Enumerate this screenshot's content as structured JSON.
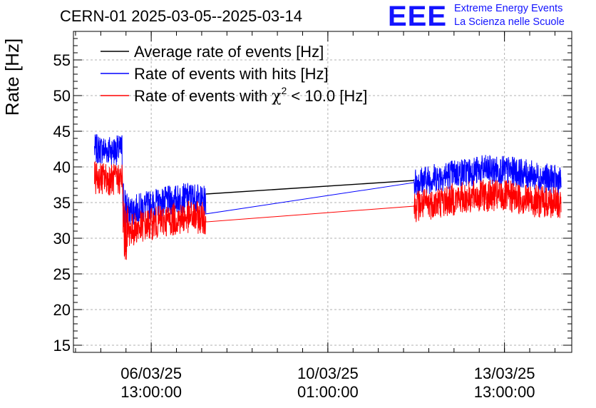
{
  "header": {
    "title": "CERN-01 2025-03-05--2025-03-14",
    "logo": "EEE",
    "logo_line1": "Extreme Energy Events",
    "logo_line2": "La Scienza nelle Scuole"
  },
  "colors": {
    "average": "#000000",
    "hits": "#0000ff",
    "chi2": "#ff0000",
    "grid": "#b0b0b0",
    "logo": "#1414ff"
  },
  "chart_data": {
    "type": "line",
    "title": "CERN-01 2025-03-05--2025-03-14",
    "xlabel": "",
    "ylabel": "Rate [Hz]",
    "x_axis_type": "datetime",
    "xlim": [
      "2025-03-05 00:00",
      "2025-03-14 21:00"
    ],
    "ylim": [
      14,
      59
    ],
    "yticks": [
      15,
      20,
      25,
      30,
      35,
      40,
      45,
      50,
      55
    ],
    "xticks": [
      {
        "at": "2025-03-06 13:00",
        "line1": "06/03/25",
        "line2": "13:00:00"
      },
      {
        "at": "2025-03-10 01:00",
        "line1": "10/03/25",
        "line2": "01:00:00"
      },
      {
        "at": "2025-03-13 13:00",
        "line1": "13/03/25",
        "line2": "13:00:00"
      }
    ],
    "grid": true,
    "legend_position": "top-left",
    "data_gap": [
      "2025-03-07 15:00",
      "2025-03-11 18:00"
    ],
    "series": [
      {
        "name": "Average rate of events [Hz]",
        "legend_label": "Average rate of events [Hz]",
        "color": "#000000",
        "points": [
          [
            "2025-03-07 15:00",
            36.2
          ],
          [
            "2025-03-11 18:00",
            38.1
          ]
        ]
      },
      {
        "name": "Rate of events with hits [Hz]",
        "legend_label": "Rate of events with hits [Hz]",
        "color": "#0000ff",
        "points": [
          [
            "2025-03-05 10:00",
            42.5
          ],
          [
            "2025-03-05 20:00",
            42.3
          ],
          [
            "2025-03-05 23:00",
            42.5
          ],
          [
            "2025-03-06 00:00",
            33.5
          ],
          [
            "2025-03-06 10:00",
            34.5
          ],
          [
            "2025-03-06 20:00",
            35.2
          ],
          [
            "2025-03-07 08:00",
            35.8
          ],
          [
            "2025-03-07 15:00",
            35.2
          ],
          [
            "2025-03-11 18:00",
            37.8
          ],
          [
            "2025-03-12 04:00",
            38.5
          ],
          [
            "2025-03-12 16:00",
            39.2
          ],
          [
            "2025-03-13 04:00",
            39.6
          ],
          [
            "2025-03-13 16:00",
            39.4
          ],
          [
            "2025-03-14 04:00",
            38.7
          ],
          [
            "2025-03-14 16:00",
            38.0
          ]
        ]
      },
      {
        "name": "Rate of events with χ² < 10.0 [Hz]",
        "legend_label": "Rate of events with",
        "legend_chi": "χ",
        "legend_sup": "2",
        "legend_rest": " < 10.0 [Hz]",
        "color": "#ff0000",
        "points": [
          [
            "2025-03-05 10:00",
            38.5
          ],
          [
            "2025-03-05 20:00",
            38.2
          ],
          [
            "2025-03-05 23:00",
            38.4
          ],
          [
            "2025-03-06 00:00",
            30.8
          ],
          [
            "2025-03-06 10:00",
            31.8
          ],
          [
            "2025-03-06 20:00",
            32.5
          ],
          [
            "2025-03-07 08:00",
            33.0
          ],
          [
            "2025-03-07 15:00",
            32.8
          ],
          [
            "2025-03-11 18:00",
            34.5
          ],
          [
            "2025-03-12 04:00",
            35.0
          ],
          [
            "2025-03-12 16:00",
            35.6
          ],
          [
            "2025-03-13 04:00",
            36.0
          ],
          [
            "2025-03-13 16:00",
            35.8
          ],
          [
            "2025-03-14 04:00",
            35.2
          ],
          [
            "2025-03-14 16:00",
            34.8
          ]
        ]
      }
    ]
  }
}
